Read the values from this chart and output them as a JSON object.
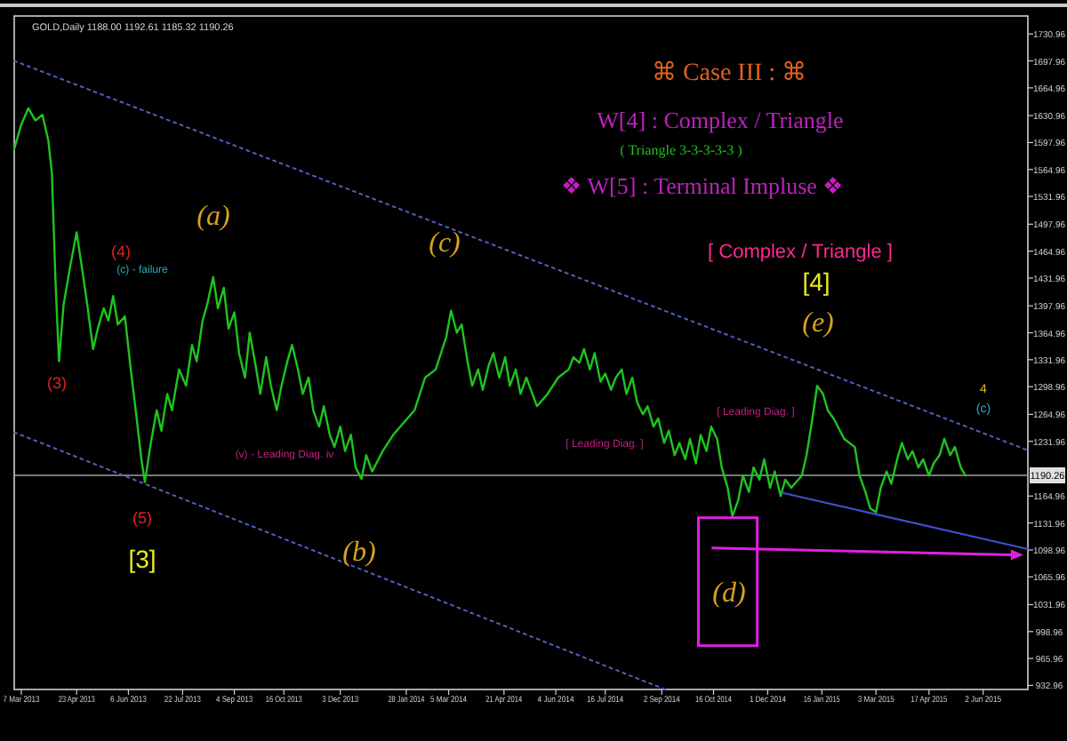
{
  "chart_data": {
    "type": "line",
    "title": "GOLD,Daily  1188.00 1192.61 1185.32 1190.26",
    "xlim": [
      "2013-03-01",
      "2015-07-10"
    ],
    "ylim": [
      928,
      1753
    ],
    "xticks": [
      {
        "value": "2013-03-07",
        "label": "7 Mar 2013"
      },
      {
        "value": "2013-04-23",
        "label": "23 Apr 2013"
      },
      {
        "value": "2013-06-06",
        "label": "6 Jun 2013"
      },
      {
        "value": "2013-07-22",
        "label": "22 Jul 2013"
      },
      {
        "value": "2013-09-04",
        "label": "4 Sep 2013"
      },
      {
        "value": "2013-10-16",
        "label": "16 Oct 2013"
      },
      {
        "value": "2013-12-03",
        "label": "3 Dec 2013"
      },
      {
        "value": "2014-01-28",
        "label": "28 Jan 2014"
      },
      {
        "value": "2014-03-05",
        "label": "5 Mar 2014"
      },
      {
        "value": "2014-04-21",
        "label": "21 Apr 2014"
      },
      {
        "value": "2014-06-04",
        "label": "4 Jun 2014"
      },
      {
        "value": "2014-07-16",
        "label": "16 Jul 2014"
      },
      {
        "value": "2014-09-02",
        "label": "2 Sep 2014"
      },
      {
        "value": "2014-10-16",
        "label": "16 Oct 2014"
      },
      {
        "value": "2014-12-01",
        "label": "1 Dec 2014"
      },
      {
        "value": "2015-01-16",
        "label": "16 Jan 2015"
      },
      {
        "value": "2015-03-03",
        "label": "3 Mar 2015"
      },
      {
        "value": "2015-04-17",
        "label": "17 Apr 2015"
      },
      {
        "value": "2015-06-02",
        "label": "2 Jun 2015"
      }
    ],
    "yticks": [
      {
        "value": 932.96,
        "label": "932.96"
      },
      {
        "value": 965.96,
        "label": "965.96"
      },
      {
        "value": 998.96,
        "label": "998.96"
      },
      {
        "value": 1031.96,
        "label": "1031.96"
      },
      {
        "value": 1065.96,
        "label": "1065.96"
      },
      {
        "value": 1098.96,
        "label": "1098.96"
      },
      {
        "value": 1131.96,
        "label": "1131.96"
      },
      {
        "value": 1164.96,
        "label": "1164.96"
      },
      {
        "value": 1231.96,
        "label": "1231.96"
      },
      {
        "value": 1264.96,
        "label": "1264.96"
      },
      {
        "value": 1298.96,
        "label": "1298.96"
      },
      {
        "value": 1331.96,
        "label": "1331.96"
      },
      {
        "value": 1364.96,
        "label": "1364.96"
      },
      {
        "value": 1397.96,
        "label": "1397.96"
      },
      {
        "value": 1431.96,
        "label": "1431.96"
      },
      {
        "value": 1464.96,
        "label": "1464.96"
      },
      {
        "value": 1497.96,
        "label": "1497.96"
      },
      {
        "value": 1531.96,
        "label": "1531.96"
      },
      {
        "value": 1564.96,
        "label": "1564.96"
      },
      {
        "value": 1597.96,
        "label": "1597.96"
      },
      {
        "value": 1630.96,
        "label": "1630.96"
      },
      {
        "value": 1664.96,
        "label": "1664.96"
      },
      {
        "value": 1697.96,
        "label": "1697.96"
      },
      {
        "value": 1730.96,
        "label": "1730.96"
      }
    ],
    "marker": "none",
    "ref_lines": [
      {
        "axis": "y",
        "value": 1190.26,
        "label": "1190.26",
        "color": "#a0a0a0"
      }
    ],
    "series": [
      {
        "color": "#1fc41f",
        "line_style": "solid",
        "x": [
          "2013-03-01",
          "2013-03-07",
          "2013-03-13",
          "2013-03-19",
          "2013-03-25",
          "2013-03-30",
          "2013-04-02",
          "2013-04-05",
          "2013-04-08",
          "2013-04-12",
          "2013-04-18",
          "2013-04-23",
          "2013-04-28",
          "2013-05-02",
          "2013-05-07",
          "2013-05-11",
          "2013-05-16",
          "2013-05-20",
          "2013-05-24",
          "2013-05-28",
          "2013-06-03",
          "2013-06-08",
          "2013-06-13",
          "2013-06-17",
          "2013-06-20",
          "2013-06-25",
          "2013-06-30",
          "2013-07-04",
          "2013-07-09",
          "2013-07-13",
          "2013-07-19",
          "2013-07-25",
          "2013-07-30",
          "2013-08-03",
          "2013-08-08",
          "2013-08-12",
          "2013-08-17",
          "2013-08-21",
          "2013-08-26",
          "2013-08-30",
          "2013-09-04",
          "2013-09-08",
          "2013-09-13",
          "2013-09-17",
          "2013-09-22",
          "2013-09-26",
          "2013-10-01",
          "2013-10-05",
          "2013-10-10",
          "2013-10-14",
          "2013-10-19",
          "2013-10-23",
          "2013-10-28",
          "2013-11-01",
          "2013-11-06",
          "2013-11-10",
          "2013-11-15",
          "2013-11-19",
          "2013-11-24",
          "2013-11-28",
          "2013-12-03",
          "2013-12-07",
          "2013-12-12",
          "2013-12-16",
          "2013-12-21",
          "2013-12-25",
          "2013-12-30",
          "2014-01-08",
          "2014-01-17",
          "2014-01-26",
          "2014-02-04",
          "2014-02-13",
          "2014-02-22",
          "2014-03-03",
          "2014-03-07",
          "2014-03-12",
          "2014-03-16",
          "2014-03-21",
          "2014-03-25",
          "2014-03-30",
          "2014-04-03",
          "2014-04-08",
          "2014-04-12",
          "2014-04-17",
          "2014-04-22",
          "2014-04-26",
          "2014-05-01",
          "2014-05-05",
          "2014-05-10",
          "2014-05-19",
          "2014-05-28",
          "2014-06-06",
          "2014-06-15",
          "2014-06-19",
          "2014-06-24",
          "2014-06-28",
          "2014-07-03",
          "2014-07-07",
          "2014-07-12",
          "2014-07-16",
          "2014-07-21",
          "2014-07-25",
          "2014-07-30",
          "2014-08-03",
          "2014-08-08",
          "2014-08-12",
          "2014-08-17",
          "2014-08-21",
          "2014-08-26",
          "2014-08-30",
          "2014-09-04",
          "2014-09-08",
          "2014-09-13",
          "2014-09-17",
          "2014-09-22",
          "2014-09-26",
          "2014-10-01",
          "2014-10-05",
          "2014-10-10",
          "2014-10-14",
          "2014-10-19",
          "2014-10-23",
          "2014-10-28",
          "2014-11-01",
          "2014-11-06",
          "2014-11-10",
          "2014-11-15",
          "2014-11-19",
          "2014-11-24",
          "2014-11-28",
          "2014-12-03",
          "2014-12-07",
          "2014-12-12",
          "2014-12-16",
          "2014-12-21",
          "2014-12-30",
          "2015-01-03",
          "2015-01-08",
          "2015-01-12",
          "2015-01-17",
          "2015-01-21",
          "2015-01-26",
          "2015-02-04",
          "2015-02-13",
          "2015-02-17",
          "2015-02-22",
          "2015-02-26",
          "2015-03-03",
          "2015-03-07",
          "2015-03-12",
          "2015-03-16",
          "2015-03-21",
          "2015-03-25",
          "2015-03-30",
          "2015-04-03",
          "2015-04-08",
          "2015-04-12",
          "2015-04-17",
          "2015-04-21",
          "2015-04-26",
          "2015-04-30",
          "2015-05-05",
          "2015-05-09",
          "2015-05-14",
          "2015-05-18"
        ],
        "values": [
          1590,
          1620,
          1640,
          1625,
          1632,
          1600,
          1560,
          1430,
          1330,
          1400,
          1450,
          1488,
          1440,
          1400,
          1345,
          1370,
          1395,
          1380,
          1410,
          1375,
          1385,
          1320,
          1260,
          1210,
          1182,
          1230,
          1270,
          1245,
          1290,
          1270,
          1320,
          1300,
          1350,
          1330,
          1380,
          1400,
          1433,
          1395,
          1420,
          1370,
          1390,
          1340,
          1310,
          1365,
          1325,
          1290,
          1335,
          1300,
          1270,
          1300,
          1330,
          1350,
          1320,
          1290,
          1310,
          1270,
          1250,
          1275,
          1240,
          1225,
          1250,
          1220,
          1240,
          1200,
          1186,
          1215,
          1195,
          1220,
          1240,
          1255,
          1270,
          1310,
          1320,
          1360,
          1392,
          1365,
          1375,
          1330,
          1300,
          1320,
          1295,
          1325,
          1340,
          1310,
          1335,
          1300,
          1320,
          1290,
          1310,
          1275,
          1290,
          1310,
          1320,
          1335,
          1328,
          1345,
          1320,
          1340,
          1305,
          1315,
          1295,
          1310,
          1320,
          1290,
          1310,
          1280,
          1265,
          1275,
          1250,
          1260,
          1230,
          1245,
          1215,
          1230,
          1210,
          1235,
          1205,
          1240,
          1220,
          1250,
          1235,
          1200,
          1175,
          1140,
          1160,
          1190,
          1170,
          1200,
          1185,
          1210,
          1175,
          1195,
          1165,
          1185,
          1175,
          1190,
          1215,
          1260,
          1300,
          1290,
          1270,
          1260,
          1235,
          1225,
          1190,
          1170,
          1150,
          1145,
          1175,
          1195,
          1180,
          1210,
          1230,
          1210,
          1220,
          1200,
          1210,
          1190,
          1205,
          1215,
          1235,
          1215,
          1225,
          1200,
          1190
        ]
      },
      {
        "color": "#5060c0",
        "line_style": "dotted",
        "x": [
          "2013-03-01",
          "2015-07-10"
        ],
        "values": [
          1698,
          1221
        ]
      },
      {
        "color": "#5060c0",
        "line_style": "dotted",
        "x": [
          "2013-03-01",
          "2014-09-05"
        ],
        "values": [
          1243,
          928
        ]
      },
      {
        "color": "#4050d0",
        "line_style": "solid",
        "x": [
          "2014-12-13",
          "2015-07-10"
        ],
        "values": [
          1169,
          1100
        ]
      }
    ],
    "annotations": [
      "⌘   Case III :   ⌘",
      "W[4] : Complex / Triangle",
      "( Triangle 3-3-3-3-3 )",
      "❖  W[5] : Terminal Impluse  ❖",
      "(3)",
      "(4)",
      "(c) - failure",
      "(5)",
      "[3]",
      "(a)",
      "(b)",
      "(c)",
      "(d)",
      "(e)",
      "[4]",
      "[ Complex / Triangle ]",
      "[ Leading Diag. ]",
      "[ Leading Diag. ]",
      "(v) - Leading Diag. iv",
      "4",
      "(c)"
    ]
  }
}
